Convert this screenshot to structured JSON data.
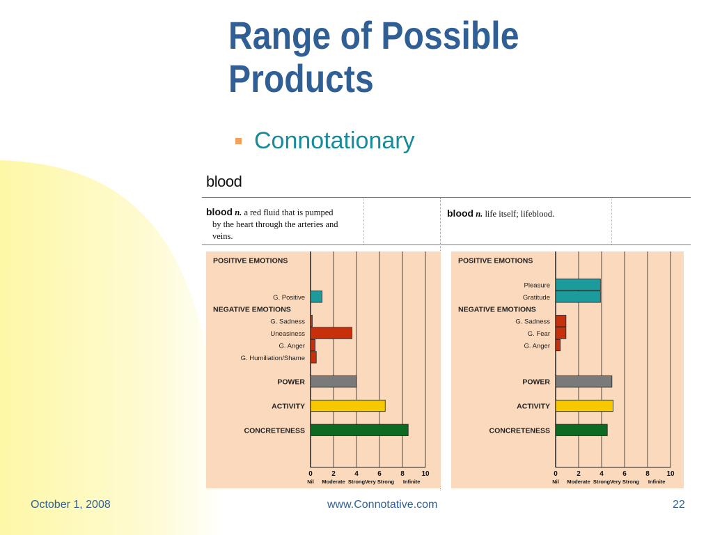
{
  "title_line1": "Range of Possible",
  "title_line2": "Products",
  "bullet": "Connotationary",
  "word": "blood",
  "definitions": [
    {
      "headword": "blood",
      "pos": "n.",
      "text_lines": [
        "a red fluid that is pumped",
        "by the heart through the arteries and",
        "veins."
      ]
    },
    {
      "headword": "blood",
      "pos": "n.",
      "text_lines": [
        "life itself; lifeblood."
      ]
    }
  ],
  "footer": {
    "date": "October 1, 2008",
    "url": "www.Connotative.com",
    "page": "22"
  },
  "colors": {
    "title": "#2f5f94",
    "bullet_text": "#178b9a",
    "bullet_mark": "#f2a25c",
    "panel_bg": "#fbd9bd",
    "positive": "#1b9b9b",
    "negative": "#c8300c",
    "power": "#7a7a7a",
    "activity": "#f5c800",
    "concreteness": "#0d6a22"
  },
  "chart_data": [
    {
      "type": "bar",
      "orientation": "horizontal",
      "xlim": [
        0,
        10
      ],
      "xticks": [
        0,
        2,
        4,
        6,
        8,
        10
      ],
      "xtick_words": [
        "Nil",
        "Moderate",
        "Strong",
        "Very Strong",
        "Infinite"
      ],
      "grid": true,
      "rows": [
        {
          "label": "POSITIVE EMOTIONS",
          "heading": true
        },
        {
          "label": "",
          "spacer": true
        },
        {
          "label": "",
          "spacer": true
        },
        {
          "label": "G. Positive",
          "value": 1.0,
          "group": "positive"
        },
        {
          "label": "NEGATIVE EMOTIONS",
          "heading": true
        },
        {
          "label": "G. Sadness",
          "value": 0.15,
          "group": "negative"
        },
        {
          "label": "Uneasiness",
          "value": 3.6,
          "group": "negative"
        },
        {
          "label": "G. Anger",
          "value": 0.4,
          "group": "negative"
        },
        {
          "label": "G. Humiliation/Shame",
          "value": 0.5,
          "group": "negative"
        },
        {
          "label": "",
          "spacer": true
        },
        {
          "label": "POWER",
          "value": 4.0,
          "group": "power",
          "bold": true
        },
        {
          "label": "",
          "spacer": true
        },
        {
          "label": "ACTIVITY",
          "value": 6.5,
          "group": "activity",
          "bold": true
        },
        {
          "label": "",
          "spacer": true
        },
        {
          "label": "CONCRETENESS",
          "value": 8.5,
          "group": "concreteness",
          "bold": true
        }
      ]
    },
    {
      "type": "bar",
      "orientation": "horizontal",
      "xlim": [
        0,
        10
      ],
      "xticks": [
        0,
        2,
        4,
        6,
        8,
        10
      ],
      "xtick_words": [
        "Nil",
        "Moderate",
        "Strong",
        "Very Strong",
        "Infinite"
      ],
      "grid": true,
      "rows": [
        {
          "label": "POSITIVE EMOTIONS",
          "heading": true
        },
        {
          "label": "",
          "spacer": true
        },
        {
          "label": "Pleasure",
          "value": 3.9,
          "group": "positive"
        },
        {
          "label": "Gratitude",
          "value": 3.9,
          "group": "positive"
        },
        {
          "label": "NEGATIVE EMOTIONS",
          "heading": true
        },
        {
          "label": "G. Sadness",
          "value": 0.9,
          "group": "negative"
        },
        {
          "label": "G. Fear",
          "value": 0.9,
          "group": "negative"
        },
        {
          "label": "G. Anger",
          "value": 0.4,
          "group": "negative"
        },
        {
          "label": "",
          "spacer": true
        },
        {
          "label": "",
          "spacer": true
        },
        {
          "label": "POWER",
          "value": 4.9,
          "group": "power",
          "bold": true
        },
        {
          "label": "",
          "spacer": true
        },
        {
          "label": "ACTIVITY",
          "value": 5.0,
          "group": "activity",
          "bold": true
        },
        {
          "label": "",
          "spacer": true
        },
        {
          "label": "CONCRETENESS",
          "value": 4.5,
          "group": "concreteness",
          "bold": true
        }
      ]
    }
  ]
}
